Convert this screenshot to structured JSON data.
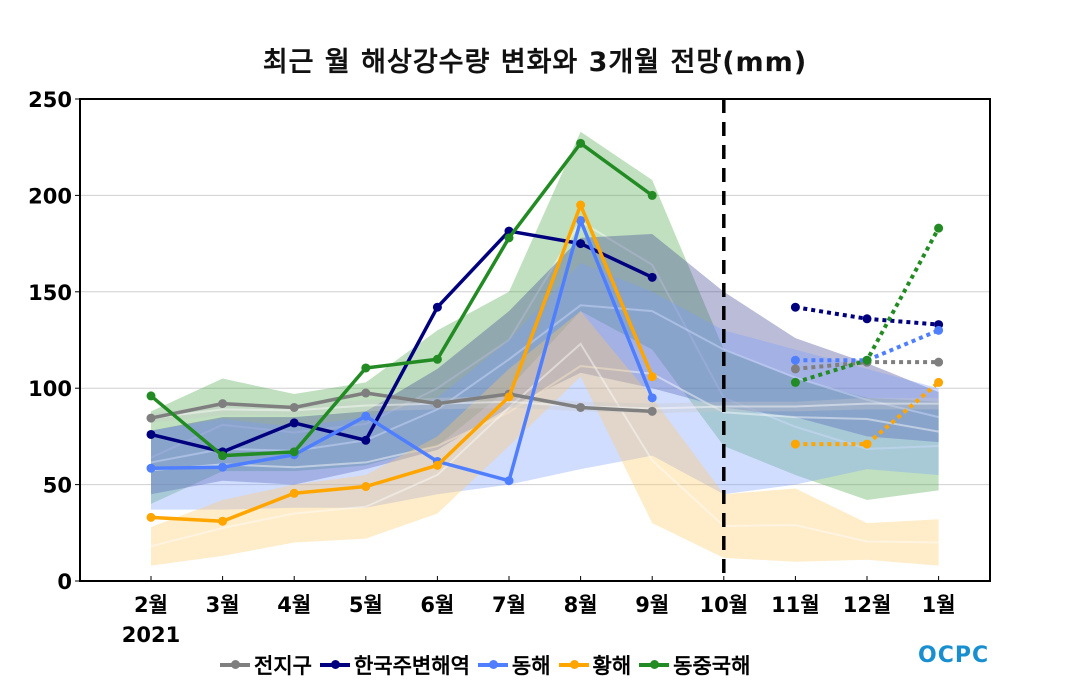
{
  "chart_data": {
    "type": "line",
    "title": "최근 월 해상강수량 변화와 3개월 전망(mm)",
    "xlabel": "",
    "ylabel": "",
    "ylim": [
      0,
      250
    ],
    "yticks": [
      "0",
      "50",
      "100",
      "150",
      "200",
      "250"
    ],
    "categories": [
      "2월",
      "3월",
      "4월",
      "5월",
      "6월",
      "7월",
      "8월",
      "9월",
      "10월",
      "11월",
      "12월",
      "1월"
    ],
    "year_label": "2021",
    "grid": true,
    "legend_position": "bottom",
    "divider_at": "10월",
    "series": [
      {
        "name": "전지구",
        "color": "#7f7f7f",
        "observed": [
          84.5,
          92,
          90,
          97.5,
          92,
          97,
          90,
          88,
          null,
          null,
          null,
          null
        ],
        "forecast": [
          null,
          null,
          null,
          null,
          null,
          null,
          null,
          null,
          null,
          110,
          113.5,
          113.5
        ]
      },
      {
        "name": "한국주변해역",
        "color": "#00007f",
        "observed": [
          76,
          67,
          82,
          73,
          142,
          181.5,
          175,
          157.5,
          null,
          null,
          null,
          null
        ],
        "forecast": [
          null,
          null,
          null,
          null,
          null,
          null,
          null,
          null,
          null,
          142,
          136,
          133
        ]
      },
      {
        "name": "동해",
        "color": "#4f7fff",
        "observed": [
          58.5,
          59,
          65.5,
          85.5,
          62,
          52,
          187,
          95,
          null,
          null,
          null,
          null
        ],
        "forecast": [
          null,
          null,
          null,
          null,
          null,
          null,
          null,
          null,
          null,
          114.5,
          114.5,
          130
        ]
      },
      {
        "name": "황해",
        "color": "#ffa500",
        "observed": [
          33,
          31,
          45.5,
          49,
          60,
          95.5,
          195,
          106,
          null,
          null,
          null,
          null
        ],
        "forecast": [
          null,
          null,
          null,
          null,
          null,
          null,
          null,
          null,
          null,
          71,
          71,
          103
        ]
      },
      {
        "name": "동중국해",
        "color": "#238b23",
        "observed": [
          96,
          65,
          67,
          110.5,
          115,
          178,
          227,
          200,
          null,
          null,
          null,
          null
        ],
        "forecast": [
          null,
          null,
          null,
          null,
          null,
          null,
          null,
          null,
          null,
          103,
          114.5,
          183
        ]
      }
    ],
    "bands": [
      {
        "name": "동중국해-range",
        "color": "#4aa64a",
        "upper": [
          88,
          105,
          97,
          103,
          130,
          150,
          233,
          208,
          120,
          105,
          95,
          93
        ],
        "lower": [
          40,
          57,
          57,
          60,
          70,
          100,
          140,
          120,
          70,
          55,
          42,
          47
        ]
      },
      {
        "name": "한국주변해역-range",
        "color": "#3a3f8f",
        "upper": [
          78,
          85,
          85,
          88,
          110,
          140,
          178,
          180,
          150,
          126,
          113,
          98
        ],
        "lower": [
          45,
          52,
          50,
          58,
          68,
          90,
          108,
          100,
          90,
          85,
          75,
          72
        ]
      },
      {
        "name": "동해-range",
        "color": "#7a9fff",
        "upper": [
          78,
          84,
          80,
          85,
          95,
          125,
          165,
          150,
          130,
          120,
          110,
          100
        ],
        "lower": [
          37,
          37,
          38,
          38,
          45,
          50,
          58,
          65,
          45,
          50,
          58,
          55
        ]
      },
      {
        "name": "황해-range",
        "color": "#ffc864",
        "upper": [
          28,
          42,
          50,
          55,
          75,
          110,
          140,
          95,
          45,
          48,
          30,
          32
        ],
        "lower": [
          8,
          13,
          20,
          22,
          35,
          70,
          106,
          30,
          12,
          10,
          11,
          8
        ]
      },
      {
        "name": "전지구-range",
        "color": "#c8c8c8",
        "upper": [
          87,
          92,
          91,
          94,
          95,
          96,
          93,
          92,
          93,
          93,
          95,
          95
        ],
        "lower": [
          82,
          86,
          86,
          88,
          89,
          90,
          88,
          87,
          88,
          88,
          89,
          89
        ]
      }
    ]
  },
  "legend": {
    "items": [
      {
        "label": "전지구",
        "color": "#7f7f7f"
      },
      {
        "label": "한국주변해역",
        "color": "#00007f"
      },
      {
        "label": "동해",
        "color": "#4f7fff"
      },
      {
        "label": "황해",
        "color": "#ffa500"
      },
      {
        "label": "동중국해",
        "color": "#238b23"
      }
    ]
  },
  "logo": {
    "text": "OCPC",
    "color": "#1a8fd0"
  }
}
